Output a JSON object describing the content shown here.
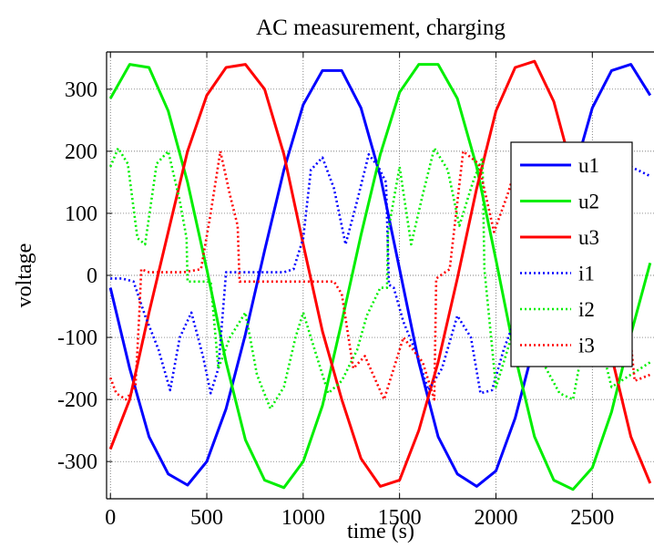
{
  "chart_data": {
    "type": "line",
    "title": "AC measurement, charging",
    "xlabel": "time (s)",
    "ylabel": "voltage",
    "xlim": [
      -20,
      2820
    ],
    "ylim": [
      -360,
      360
    ],
    "x_ticks": [
      0,
      500,
      1000,
      1500,
      2000,
      2500
    ],
    "y_ticks": [
      -300,
      -200,
      -100,
      0,
      100,
      200,
      300
    ],
    "grid": true,
    "legend_placement": "right",
    "series": [
      {
        "name": "u1",
        "color": "#0000ff",
        "style": "solid",
        "x": [
          0,
          100,
          200,
          300,
          400,
          500,
          600,
          700,
          800,
          900,
          1000,
          1100,
          1200,
          1300,
          1400,
          1500,
          1600,
          1700,
          1800,
          1900,
          2000,
          2100,
          2200,
          2300,
          2400,
          2500,
          2600,
          2700,
          2800
        ],
        "y": [
          -20,
          -150,
          -260,
          -320,
          -338,
          -300,
          -215,
          -95,
          40,
          170,
          275,
          330,
          330,
          270,
          160,
          10,
          -140,
          -260,
          -320,
          -340,
          -315,
          -230,
          -110,
          20,
          160,
          270,
          330,
          340,
          290
        ]
      },
      {
        "name": "u2",
        "color": "#00ee00",
        "style": "solid",
        "x": [
          0,
          100,
          200,
          300,
          400,
          500,
          600,
          700,
          800,
          900,
          1000,
          1100,
          1200,
          1300,
          1400,
          1500,
          1600,
          1700,
          1800,
          1900,
          2000,
          2100,
          2200,
          2300,
          2400,
          2500,
          2600,
          2700,
          2800
        ],
        "y": [
          285,
          340,
          335,
          265,
          150,
          10,
          -140,
          -265,
          -330,
          -342,
          -300,
          -210,
          -75,
          65,
          195,
          295,
          340,
          340,
          285,
          175,
          25,
          -130,
          -260,
          -330,
          -345,
          -310,
          -220,
          -95,
          20
        ]
      },
      {
        "name": "u3",
        "color": "#ff0000",
        "style": "solid",
        "x": [
          0,
          100,
          200,
          300,
          400,
          500,
          600,
          700,
          800,
          900,
          1000,
          1100,
          1200,
          1300,
          1400,
          1500,
          1600,
          1700,
          1800,
          1900,
          2000,
          2100,
          2200,
          2300,
          2400,
          2500,
          2600,
          2700,
          2800
        ],
        "y": [
          -280,
          -200,
          -60,
          70,
          200,
          290,
          335,
          340,
          300,
          195,
          50,
          -90,
          -200,
          -295,
          -340,
          -330,
          -250,
          -140,
          -5,
          140,
          265,
          335,
          345,
          280,
          165,
          20,
          -130,
          -260,
          -335
        ]
      },
      {
        "name": "i1",
        "color": "#0000ff",
        "style": "dotted",
        "x": [
          0,
          30,
          60,
          120,
          180,
          250,
          310,
          360,
          420,
          480,
          520,
          560,
          600,
          700,
          800,
          900,
          950,
          1000,
          1040,
          1100,
          1160,
          1220,
          1280,
          1340,
          1390,
          1430,
          1445,
          1470,
          1520,
          1580,
          1650,
          1720,
          1800,
          1870,
          1920,
          1980,
          2040,
          2100,
          2150,
          2200,
          2300,
          2400,
          2450,
          2500,
          2550,
          2600,
          2700,
          2800
        ],
        "y": [
          -5,
          -5,
          -5,
          -10,
          -65,
          -120,
          -185,
          -100,
          -60,
          -130,
          -190,
          -150,
          5,
          5,
          5,
          5,
          10,
          60,
          170,
          190,
          140,
          50,
          120,
          195,
          175,
          150,
          -15,
          -20,
          -75,
          -120,
          -185,
          -150,
          -65,
          -100,
          -190,
          -185,
          -120,
          -70,
          -90,
          5,
          5,
          5,
          5,
          40,
          160,
          185,
          175,
          160
        ]
      },
      {
        "name": "i2",
        "color": "#00ee00",
        "style": "dotted",
        "x": [
          0,
          40,
          90,
          140,
          180,
          240,
          300,
          360,
          395,
          400,
          460,
          520,
          560,
          620,
          700,
          760,
          830,
          900,
          960,
          1000,
          1060,
          1130,
          1200,
          1280,
          1330,
          1400,
          1435,
          1440,
          1500,
          1560,
          1620,
          1680,
          1750,
          1810,
          1880,
          1930,
          1940,
          2000,
          2060,
          2120,
          2180,
          2260,
          2330,
          2400,
          2460,
          2520,
          2600,
          2700,
          2800
        ],
        "y": [
          175,
          205,
          180,
          60,
          50,
          180,
          200,
          120,
          60,
          -10,
          -10,
          -10,
          -150,
          -100,
          -60,
          -160,
          -215,
          -180,
          -100,
          -60,
          -120,
          -190,
          -170,
          -120,
          -65,
          -20,
          -20,
          70,
          175,
          50,
          130,
          205,
          170,
          80,
          150,
          190,
          10,
          -180,
          -120,
          -55,
          -100,
          -150,
          -190,
          -200,
          -100,
          -80,
          -180,
          -160,
          -140
        ]
      },
      {
        "name": "i3",
        "color": "#ff0000",
        "style": "dotted",
        "x": [
          0,
          30,
          80,
          130,
          150,
          160,
          200,
          280,
          380,
          470,
          520,
          570,
          620,
          660,
          670,
          700,
          760,
          820,
          880,
          960,
          1040,
          1100,
          1160,
          1200,
          1260,
          1320,
          1420,
          1520,
          1620,
          1680,
          1690,
          1760,
          1830,
          1910,
          1990,
          2060,
          2130,
          2200,
          2210,
          2260,
          2330,
          2420,
          2500,
          2580,
          2650,
          2690,
          2720,
          2800
        ],
        "y": [
          -165,
          -190,
          -200,
          -180,
          -60,
          10,
          5,
          5,
          5,
          10,
          100,
          200,
          130,
          80,
          -10,
          -10,
          -10,
          -10,
          -10,
          -10,
          -10,
          -10,
          -10,
          -30,
          -150,
          -130,
          -200,
          -100,
          -140,
          -200,
          -5,
          10,
          200,
          180,
          70,
          130,
          200,
          160,
          -5,
          -5,
          -5,
          -5,
          -5,
          -5,
          -5,
          -80,
          -170,
          -160
        ]
      }
    ]
  }
}
